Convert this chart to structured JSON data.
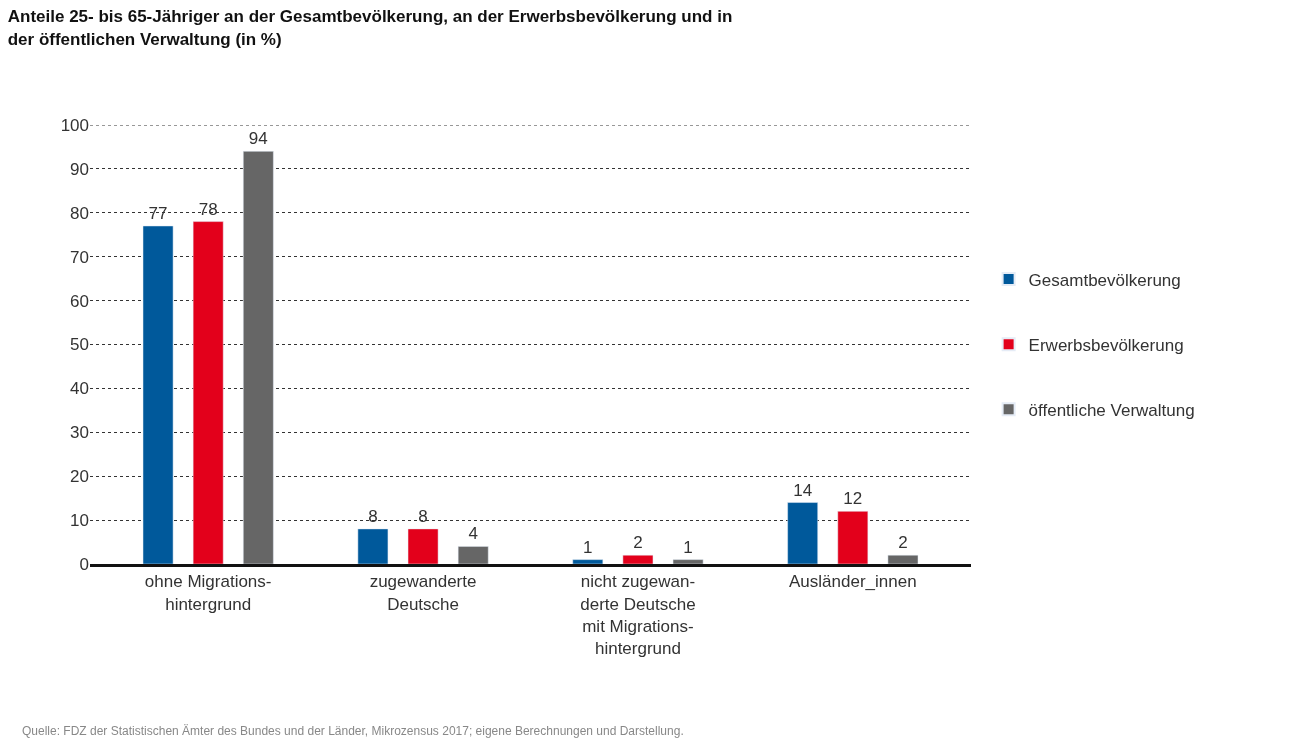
{
  "chart_data": {
    "type": "bar",
    "title": "Anteile 25- bis 65-Jähriger an der Gesamtbevölkerung, an der Erwerbsbevölkerung und in der öffentlichen Verwaltung (in %)",
    "categories": [
      "ohne Migrations-\nhintergrund",
      "zugewanderte\nDeutsche",
      "nicht zugewan-\nderte Deutsche\nmit Migrations-\nhintergrund",
      "Ausländer_innen"
    ],
    "series": [
      {
        "name": "Gesamtbevölkerung",
        "color": "#00599b",
        "values": [
          77,
          8,
          1,
          14
        ]
      },
      {
        "name": "Erwerbsbevölkerung",
        "color": "#e3001b",
        "values": [
          78,
          8,
          2,
          12
        ]
      },
      {
        "name": "öffentliche Verwaltung",
        "color": "#666666",
        "values": [
          94,
          4,
          1,
          2
        ]
      }
    ],
    "ylim": [
      0,
      100
    ],
    "yticks": [
      0,
      10,
      20,
      30,
      40,
      50,
      60,
      70,
      80,
      90,
      100
    ],
    "grid": "y",
    "legend": "right",
    "data_labels": true,
    "annotations": [
      "Quelle: FDZ der Statistischen Ämter des Bundes und der Länder, Mikrozensus 2017; eigene Berechnungen und Darstellung."
    ]
  }
}
